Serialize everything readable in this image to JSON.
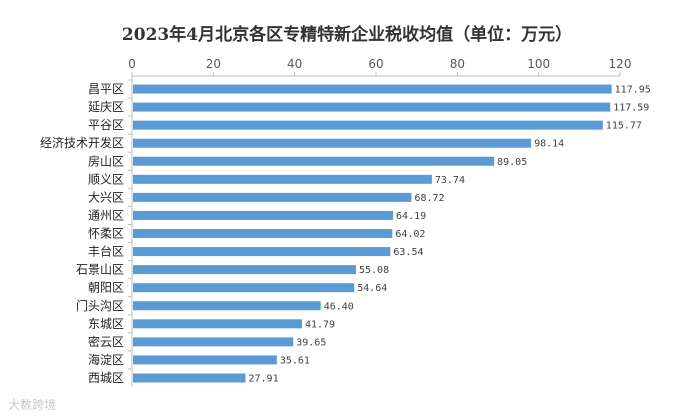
{
  "chart_data": {
    "type": "bar",
    "orientation": "horizontal",
    "title": "2023年4月北京各区专精特新企业税收均值（单位：万元）",
    "categories": [
      "昌平区",
      "延庆区",
      "平谷区",
      "经济技术开发区",
      "房山区",
      "顺义区",
      "大兴区",
      "通州区",
      "怀柔区",
      "丰台区",
      "石景山区",
      "朝阳区",
      "门头沟区",
      "东城区",
      "密云区",
      "海淀区",
      "西城区"
    ],
    "values": [
      117.95,
      117.59,
      115.77,
      98.14,
      89.05,
      73.74,
      68.72,
      64.19,
      64.02,
      63.54,
      55.08,
      54.64,
      46.4,
      41.79,
      39.65,
      35.61,
      27.91
    ],
    "value_labels": [
      "117.95",
      "117.59",
      "115.77",
      "98.14",
      "89.05",
      "73.74",
      "68.72",
      "64.19",
      "64.02",
      "63.54",
      "55.08",
      "54.64",
      "46.40",
      "41.79",
      "39.65",
      "35.61",
      "27.91"
    ],
    "xlim": [
      0,
      120
    ],
    "ticks": [
      "0",
      "20",
      "40",
      "60",
      "80",
      "100",
      "120"
    ],
    "axis_position": "top",
    "grid": false,
    "legend": "none",
    "bar_color": "#5B9BD5"
  },
  "watermark": "大数跨境"
}
